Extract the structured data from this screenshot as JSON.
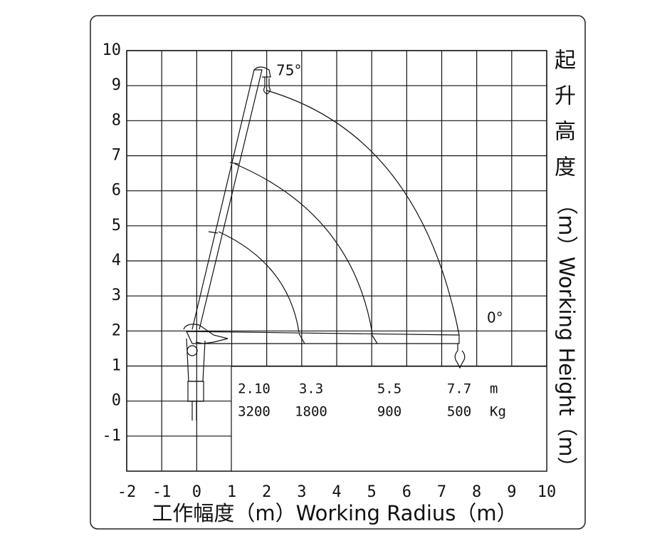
{
  "chart_data": {
    "type": "crane-load",
    "x_title": "工作幅度（m）Working Radius（m）",
    "y_title_cn": [
      "起",
      "升",
      "高",
      "度",
      "（m）"
    ],
    "y_title_en": "Working Height（m）",
    "xlim": [
      -2,
      10
    ],
    "ylim": [
      -2,
      10
    ],
    "xticks": [
      -2,
      -1,
      0,
      1,
      2,
      3,
      4,
      5,
      6,
      7,
      8,
      9,
      10
    ],
    "yticks": [
      -1,
      0,
      1,
      2,
      3,
      4,
      5,
      6,
      7,
      8,
      9,
      10
    ],
    "grid": true,
    "annotations": [
      "75°",
      "0°"
    ],
    "table": {
      "radius": [
        2.1,
        3.3,
        5.5,
        7.7
      ],
      "radius_labels": [
        "2.10",
        "3.3",
        "5.5",
        "7.7"
      ],
      "radius_unit": "m",
      "load": [
        3200,
        1800,
        900,
        500
      ],
      "load_unit": "Kg"
    }
  }
}
